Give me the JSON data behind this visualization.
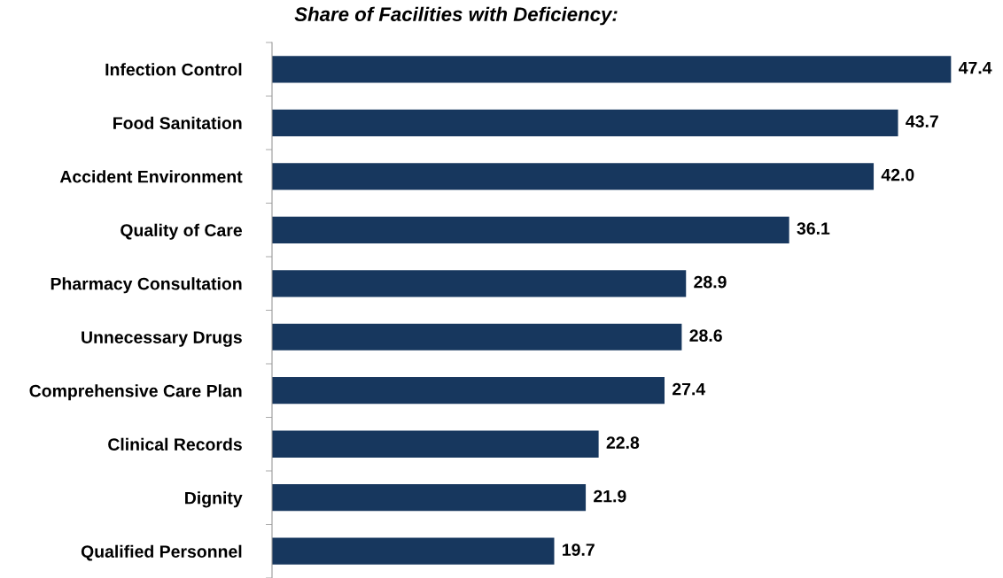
{
  "chart_data": {
    "type": "bar",
    "orientation": "horizontal",
    "title": "Share of Facilities with Deficiency:",
    "categories": [
      "Infection Control",
      "Food Sanitation",
      "Accident Environment",
      "Quality of Care",
      "Pharmacy Consultation",
      "Unnecessary Drugs",
      "Comprehensive Care Plan",
      "Clinical Records",
      "Dignity",
      "Qualified Personnel"
    ],
    "values": [
      47.4,
      43.7,
      42.0,
      36.1,
      28.9,
      28.6,
      27.4,
      22.8,
      21.9,
      19.7
    ],
    "value_labels": [
      "47.4",
      "43.7",
      "42.0",
      "36.1",
      "28.9",
      "28.6",
      "27.4",
      "22.8",
      "21.9",
      "19.7"
    ],
    "color": "#17375e",
    "grid": false,
    "legend": false
  }
}
